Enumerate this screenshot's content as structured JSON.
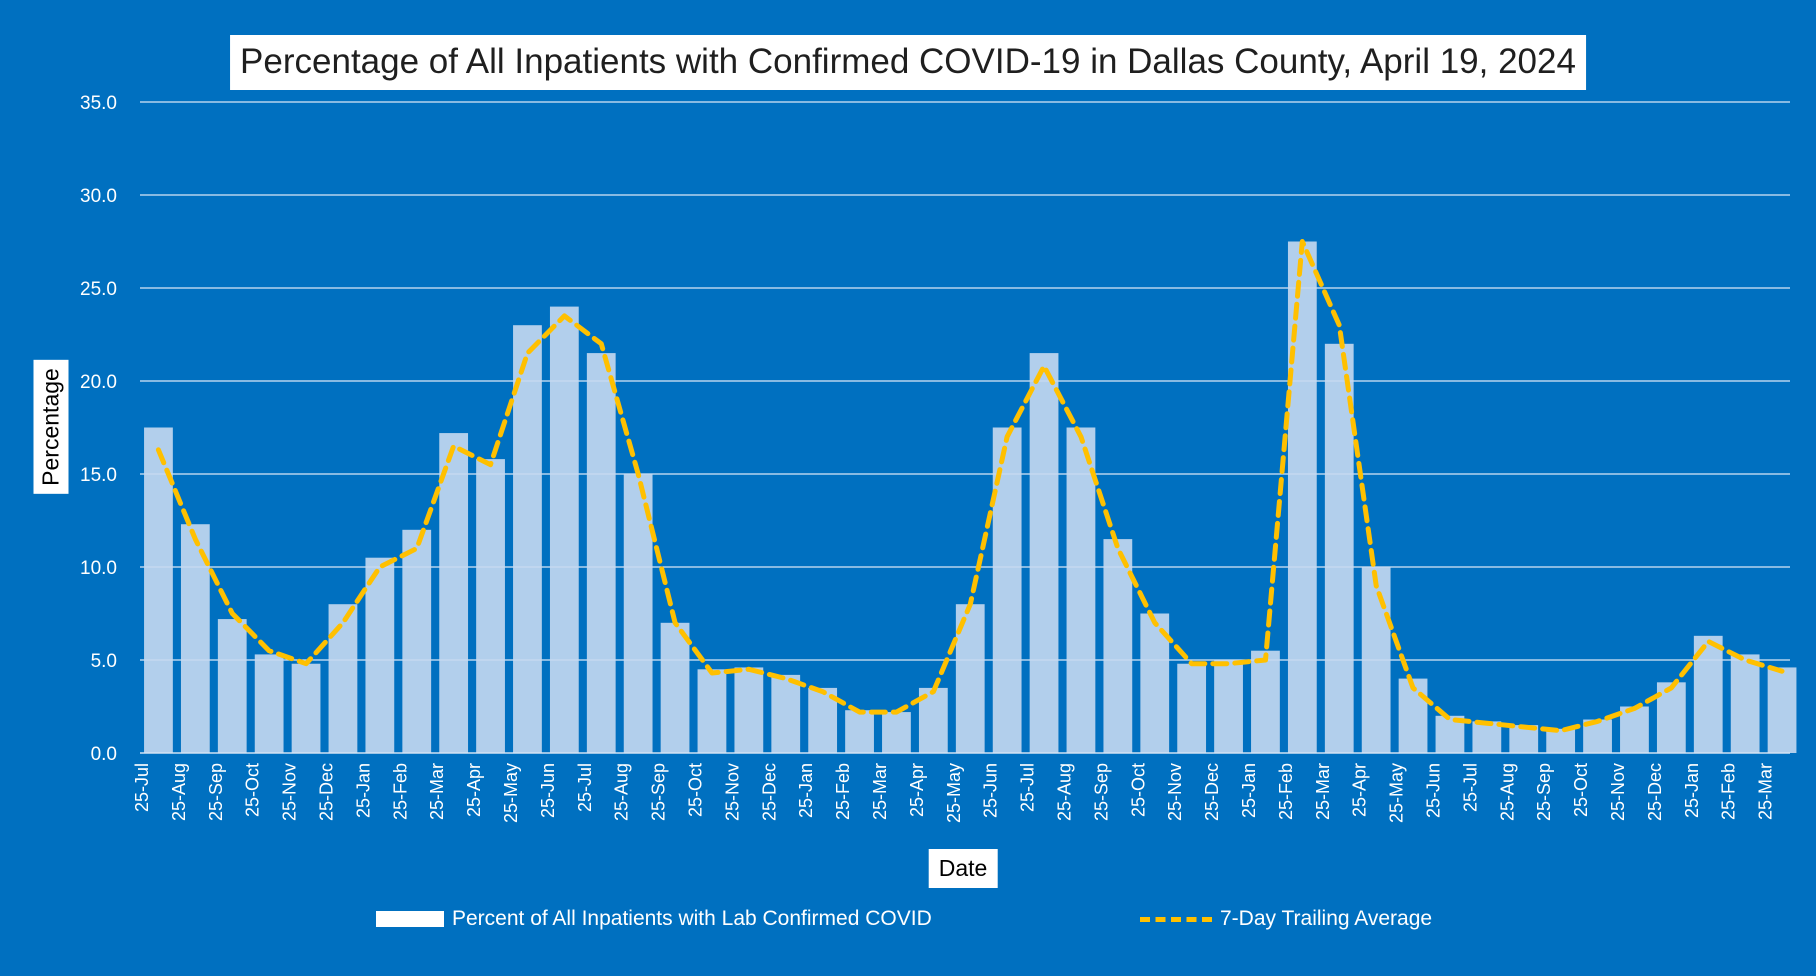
{
  "chart_data": {
    "type": "bar",
    "title": "Percentage of All Inpatients with Confirmed COVID-19 in Dallas County, April 19, 2024",
    "xlabel": "Date",
    "ylabel": "Percentage",
    "ylim": [
      0,
      35
    ],
    "y_ticks": [
      "0.0",
      "5.0",
      "10.0",
      "15.0",
      "20.0",
      "25.0",
      "30.0",
      "35.0"
    ],
    "grid": true,
    "legend_position": "bottom",
    "categories": [
      "25-Jul",
      "25-Aug",
      "25-Sep",
      "25-Oct",
      "25-Nov",
      "25-Dec",
      "25-Jan",
      "25-Feb",
      "25-Mar",
      "25-Apr",
      "25-May",
      "25-Jun",
      "25-Jul",
      "25-Aug",
      "25-Sep",
      "25-Oct",
      "25-Nov",
      "25-Dec",
      "25-Jan",
      "25-Feb",
      "25-Mar",
      "25-Apr",
      "25-May",
      "25-Jun",
      "25-Jul",
      "25-Aug",
      "25-Sep",
      "25-Oct",
      "25-Nov",
      "25-Dec",
      "25-Jan",
      "25-Feb",
      "25-Mar",
      "25-Apr",
      "25-May",
      "25-Jun",
      "25-Jul",
      "25-Aug",
      "25-Sep",
      "25-Oct",
      "25-Nov",
      "25-Dec",
      "25-Jan",
      "25-Feb",
      "25-Mar"
    ],
    "series": [
      {
        "name": "Percent of All Inpatients with Lab Confirmed COVID",
        "type": "bar",
        "color": "#c5d9f1",
        "values": [
          17.5,
          12.3,
          7.2,
          5.3,
          4.8,
          8.0,
          10.5,
          12.0,
          17.2,
          15.8,
          23.0,
          24.0,
          21.5,
          15.0,
          7.0,
          4.5,
          4.6,
          4.2,
          3.5,
          2.3,
          2.2,
          3.5,
          8.0,
          17.5,
          21.5,
          17.5,
          11.5,
          7.5,
          4.8,
          5.0,
          5.5,
          27.5,
          22.0,
          10.0,
          4.0,
          2.0,
          1.7,
          1.5,
          1.3,
          1.8,
          2.5,
          3.8,
          6.3,
          5.3,
          4.6
        ]
      },
      {
        "name": "7-Day Trailing Average",
        "type": "line",
        "color": "#ffc000",
        "values": [
          16.3,
          11.5,
          7.5,
          5.5,
          4.8,
          7.0,
          10.0,
          11.0,
          16.5,
          15.5,
          21.5,
          23.5,
          22.0,
          15.0,
          7.0,
          4.3,
          4.5,
          4.0,
          3.3,
          2.2,
          2.2,
          3.3,
          8.0,
          17.0,
          20.8,
          17.0,
          11.0,
          7.0,
          4.8,
          4.8,
          5.0,
          27.5,
          23.0,
          9.0,
          3.5,
          1.8,
          1.6,
          1.4,
          1.2,
          1.7,
          2.4,
          3.5,
          6.0,
          5.0,
          4.4
        ]
      }
    ]
  }
}
